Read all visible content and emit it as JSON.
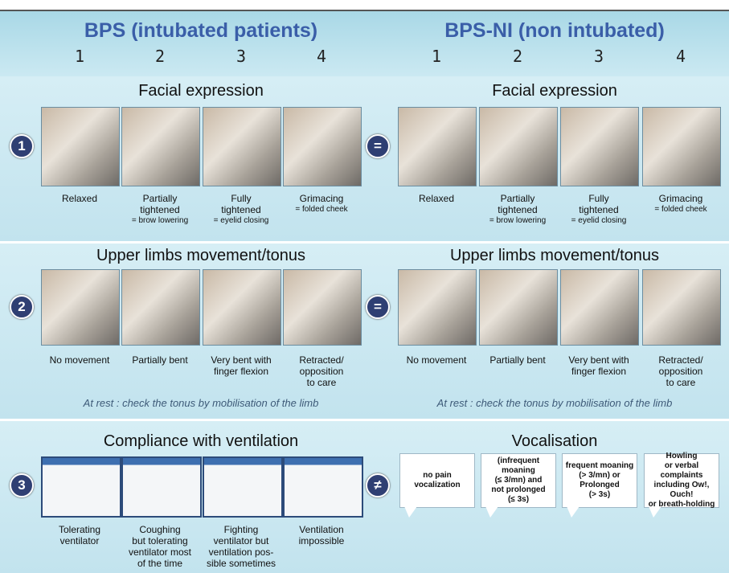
{
  "header": {
    "left_title": "BPS (intubated patients)",
    "right_title": "BPS-NI (non intubated)",
    "left_levels": [
      "1",
      "2",
      "3",
      "4"
    ],
    "right_levels": [
      "1",
      "2",
      "3",
      "4"
    ]
  },
  "sections": [
    {
      "number": "1",
      "relation": "=",
      "left": {
        "title": "Facial expression",
        "items": [
          {
            "label": [
              "Relaxed"
            ]
          },
          {
            "label": [
              "Partially",
              "tightened"
            ],
            "detail": "= brow lowering"
          },
          {
            "label": [
              "Fully",
              "tightened"
            ],
            "detail": "= eyelid closing"
          },
          {
            "label": [
              "Grimacing"
            ],
            "detail": "= folded cheek"
          }
        ]
      },
      "right": {
        "title": "Facial expression",
        "items": [
          {
            "label": [
              "Relaxed"
            ]
          },
          {
            "label": [
              "Partially",
              "tightened"
            ],
            "detail": "= brow lowering"
          },
          {
            "label": [
              "Fully",
              "tightened"
            ],
            "detail": "= eyelid closing"
          },
          {
            "label": [
              "Grimacing"
            ],
            "detail": "= folded cheek"
          }
        ]
      }
    },
    {
      "number": "2",
      "relation": "=",
      "left": {
        "title": "Upper limbs movement/tonus",
        "note": "At rest : check the tonus by mobilisation of the limb",
        "items": [
          {
            "label": [
              "No movement"
            ]
          },
          {
            "label": [
              "Partially bent"
            ]
          },
          {
            "label": [
              "Very bent with",
              "finger flexion"
            ]
          },
          {
            "label": [
              "Retracted/",
              "opposition",
              "to care"
            ]
          }
        ]
      },
      "right": {
        "title": "Upper limbs movement/tonus",
        "note": "At rest : check the tonus by mobilisation of the limb",
        "items": [
          {
            "label": [
              "No movement"
            ]
          },
          {
            "label": [
              "Partially bent"
            ]
          },
          {
            "label": [
              "Very bent with",
              "finger flexion"
            ]
          },
          {
            "label": [
              "Retracted/",
              "opposition",
              "to care"
            ]
          }
        ]
      }
    },
    {
      "number": "3",
      "relation": "≠",
      "left": {
        "title": "Compliance with ventilation",
        "items": [
          {
            "label": [
              "Tolerating",
              "ventilator"
            ]
          },
          {
            "label": [
              "Coughing",
              "but tolerating",
              "ventilator most",
              "of the time"
            ]
          },
          {
            "label": [
              "Fighting",
              "ventilator but",
              "ventilation pos-",
              "sible sometimes"
            ]
          },
          {
            "label": [
              "Ventilation",
              "impossible"
            ]
          }
        ]
      },
      "right": {
        "title": "Vocalisation",
        "items": [
          {
            "bubble": [
              "no pain",
              "vocalization"
            ]
          },
          {
            "bubble": [
              "(infrequent moaning",
              "(≤ 3/mn) and",
              "not prolonged",
              "(≤ 3s)"
            ]
          },
          {
            "bubble": [
              "frequent moaning",
              "(> 3/mn) or",
              "Prolonged",
              "(> 3s)"
            ]
          },
          {
            "bubble": [
              "Howling",
              "or verbal complaints",
              "including Ow!, Ouch!",
              "or breath-holding"
            ]
          }
        ]
      }
    }
  ]
}
